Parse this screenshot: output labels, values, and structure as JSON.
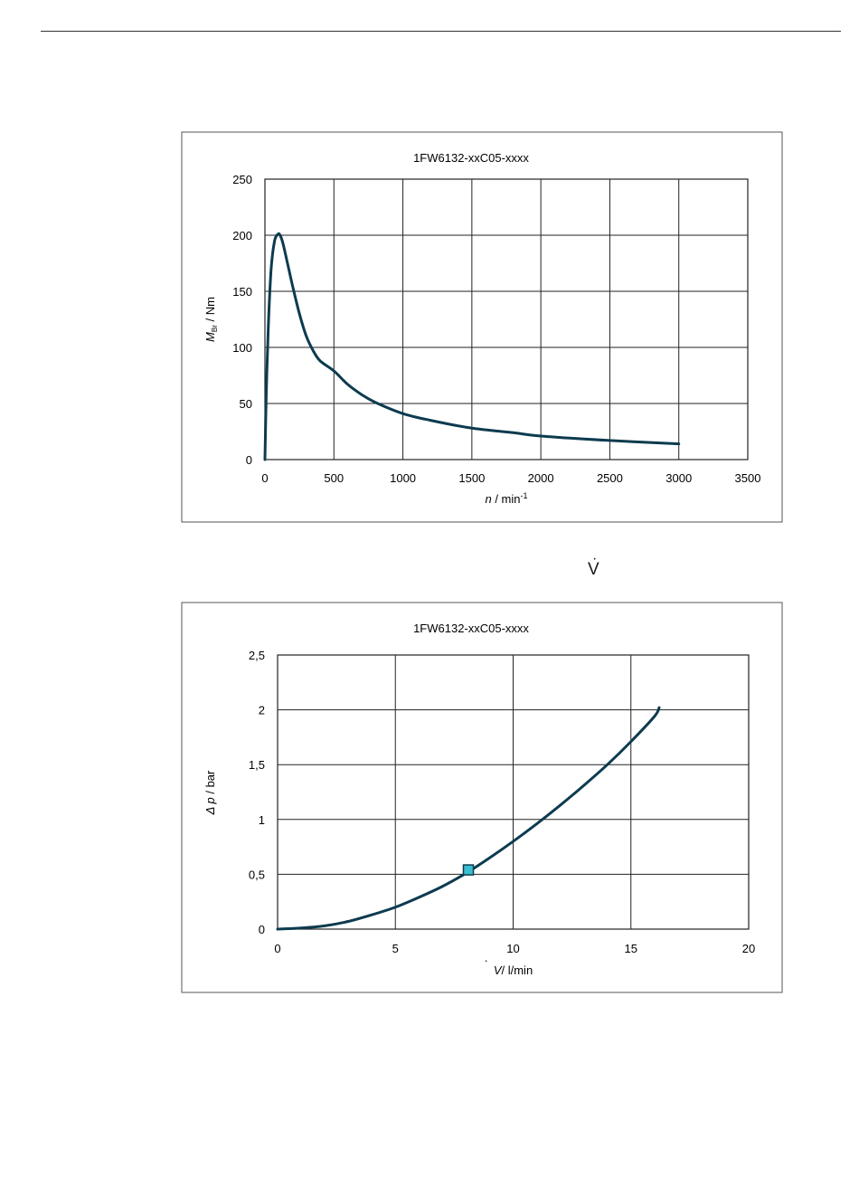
{
  "chart_data": [
    {
      "type": "line",
      "title": "1FW6132-xxC05-xxxx",
      "xlabel_var": "n",
      "xlabel_unit": " / min",
      "xlabel_sup": "-1",
      "ylabel_var": "M",
      "ylabel_sub": "Br",
      "ylabel_unit": " / Nm",
      "xlim": [
        0,
        3500
      ],
      "ylim": [
        0,
        250
      ],
      "xticks": [
        "0",
        "500",
        "1000",
        "1500",
        "2000",
        "2500",
        "3000",
        "3500"
      ],
      "yticks": [
        "0",
        "50",
        "100",
        "150",
        "200",
        "250"
      ],
      "grid": true,
      "series": [
        {
          "color": "#0d3b4f",
          "x": [
            0,
            10,
            25,
            45,
            70,
            95,
            110,
            130,
            160,
            200,
            250,
            300,
            350,
            400,
            500,
            600,
            700,
            800,
            1000,
            1200,
            1500,
            1800,
            2000,
            2500,
            3000
          ],
          "y": [
            0,
            60,
            120,
            170,
            195,
            201,
            200,
            193,
            177,
            155,
            130,
            110,
            97,
            88,
            79,
            67,
            58,
            51,
            41,
            35,
            28,
            24,
            21,
            17,
            14
          ]
        }
      ]
    },
    {
      "type": "line",
      "title": "1FW6132-xxC05-xxxx",
      "xlabel_var": "V",
      "xlabel_unit": "/ l/min",
      "ylabel_var": "Δ p",
      "ylabel_unit": " / bar",
      "xlim": [
        0,
        20
      ],
      "ylim": [
        0,
        2.5
      ],
      "xticks": [
        "0",
        "5",
        "10",
        "15",
        "20"
      ],
      "yticks": [
        "0",
        "0,5",
        "1",
        "1,5",
        "2",
        "2,5"
      ],
      "grid": true,
      "series": [
        {
          "color": "#0d3b4f",
          "x": [
            0,
            1,
            2,
            3,
            4,
            5,
            6,
            7,
            8,
            9,
            10,
            11,
            12,
            13,
            14,
            15,
            16,
            16.2
          ],
          "y": [
            0,
            0.01,
            0.03,
            0.07,
            0.13,
            0.2,
            0.29,
            0.39,
            0.51,
            0.65,
            0.8,
            0.96,
            1.13,
            1.31,
            1.5,
            1.71,
            1.94,
            2.02
          ]
        }
      ],
      "marker": {
        "x": 8.1,
        "y": 0.54,
        "color": "#3bbfd0"
      }
    }
  ],
  "symbol": "V"
}
